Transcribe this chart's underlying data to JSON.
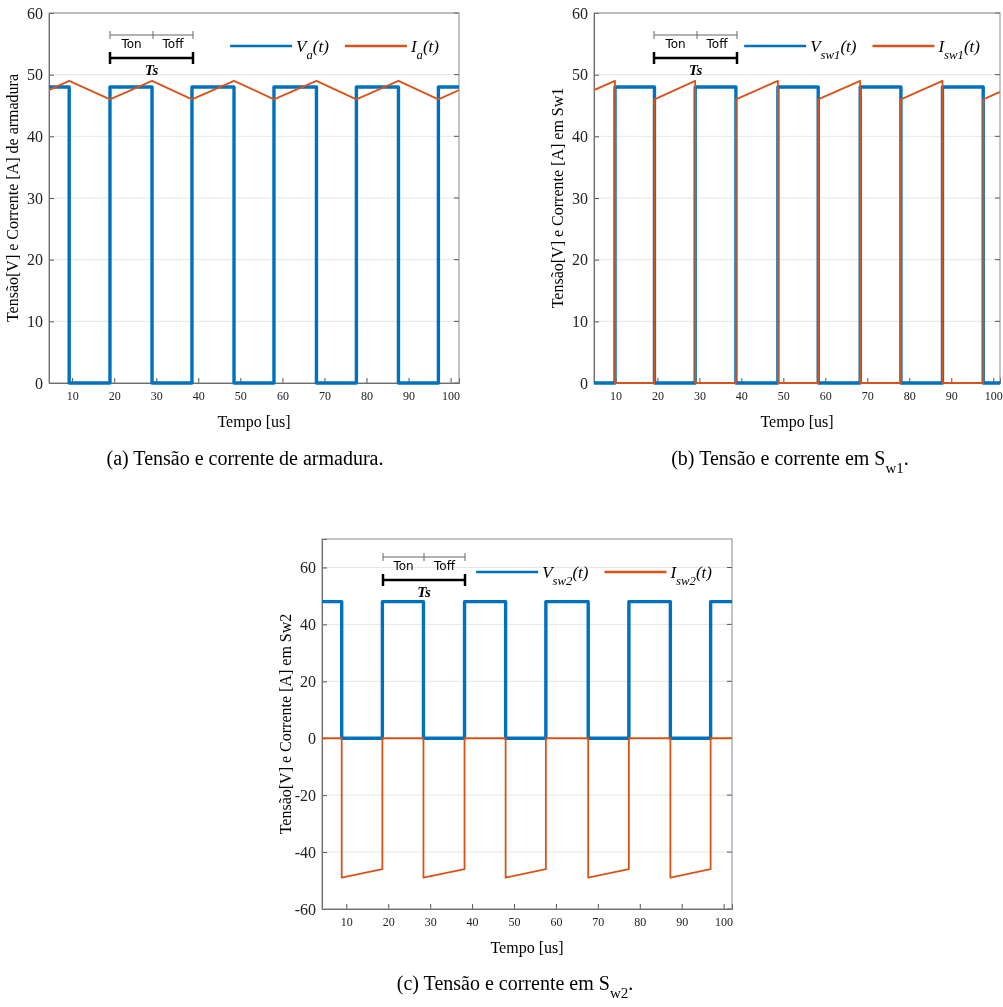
{
  "chart_data": [
    {
      "type": "line",
      "title": "(a) Tensão e corrente de armadura.",
      "xlabel": "Tempo [us]",
      "ylabel": "Tensão[V] e Corrente [A] de armadura",
      "xlim": [
        4.5,
        102
      ],
      "ylim": [
        0,
        60
      ],
      "xticks": [
        10,
        20,
        30,
        40,
        50,
        60,
        70,
        80,
        90,
        100
      ],
      "yticks": [
        0,
        10,
        20,
        30,
        40,
        50,
        60
      ],
      "grid": "y",
      "legend": "top right",
      "line_style": "solid",
      "marker": "none",
      "series": [
        {
          "name": "V$_{a}$(t)",
          "color": "#0072bd",
          "x": [
            4.5,
            9.3,
            9.3,
            19.0,
            19.0,
            29.0,
            29.0,
            38.5,
            38.5,
            48.5,
            48.5,
            58.0,
            58.0,
            68.1,
            68.1,
            77.6,
            77.6,
            87.6,
            87.6,
            97.1,
            97.1,
            102
          ],
          "values": [
            48,
            48,
            0,
            0,
            48,
            48,
            0,
            0,
            48,
            48,
            0,
            0,
            48,
            48,
            0,
            0,
            48,
            48,
            0,
            0,
            48,
            48
          ]
        },
        {
          "name": "I$_{a}$(t)",
          "color": "#d95319",
          "x": [
            4.5,
            9.3,
            19.0,
            29.0,
            38.5,
            48.5,
            58.0,
            68.1,
            77.6,
            87.6,
            97.1,
            102
          ],
          "values": [
            47.5,
            49,
            46,
            49,
            46,
            49,
            46,
            49,
            46,
            49,
            46,
            47.5
          ]
        }
      ],
      "annotations": [
        "Ton",
        "Toff",
        "Ts"
      ]
    },
    {
      "type": "line",
      "title": "(b) Tensão e corrente em S$_{w1}$.",
      "xlabel": "Tempo [us]",
      "ylabel": "Tensão[V] e Corrente [A] em Sw1",
      "xlim": [
        4.9,
        101.6
      ],
      "ylim": [
        0,
        60
      ],
      "xticks": [
        10,
        20,
        30,
        40,
        50,
        60,
        70,
        80,
        90,
        100
      ],
      "yticks": [
        0,
        10,
        20,
        30,
        40,
        50,
        60
      ],
      "grid": "y",
      "legend": "top right",
      "line_style": "solid",
      "marker": "none",
      "series": [
        {
          "name": "V$_{sw1}$(t)",
          "color": "#0072bd",
          "x": [
            4.9,
            9.9,
            9.9,
            19.3,
            19.3,
            29.0,
            29.0,
            38.7,
            38.7,
            48.7,
            48.7,
            58.3,
            58.3,
            68.3,
            68.3,
            78.0,
            78.0,
            87.9,
            87.9,
            97.6,
            97.6,
            101.6
          ],
          "values": [
            0,
            0,
            48,
            48,
            0,
            0,
            48,
            48,
            0,
            0,
            48,
            48,
            0,
            0,
            48,
            48,
            0,
            0,
            48,
            48,
            0,
            0
          ]
        },
        {
          "name": "I$_{sw1}$(t)",
          "color": "#d95319",
          "x": [
            4.9,
            9.9,
            9.9,
            19.3,
            19.3,
            29.0,
            29.0,
            38.7,
            38.7,
            48.7,
            48.7,
            58.3,
            58.3,
            68.3,
            68.3,
            78.0,
            78.0,
            87.9,
            87.9,
            97.6,
            97.6,
            101.6
          ],
          "values": [
            47.5,
            49,
            0,
            0,
            46,
            49,
            0,
            0,
            46,
            49,
            0,
            0,
            46,
            49,
            0,
            0,
            46,
            49,
            0,
            0,
            46,
            47.2
          ]
        }
      ],
      "annotations": [
        "Ton",
        "Toff",
        "Ts"
      ]
    },
    {
      "type": "line",
      "title": "(c) Tensão e corrente em S$_{w2}$.",
      "xlabel": "Tempo [us]",
      "ylabel": "Tensão[V] e Corrente [A] em Sw2",
      "xlim": [
        4.2,
        102
      ],
      "ylim": [
        -60,
        70
      ],
      "xticks": [
        10,
        20,
        30,
        40,
        50,
        60,
        70,
        80,
        90,
        100
      ],
      "yticks": [
        -60,
        -40,
        -20,
        0,
        20,
        40,
        60
      ],
      "grid": "y",
      "legend": "top right",
      "line_style": "solid",
      "marker": "none",
      "series": [
        {
          "name": "V$_{sw2}$(t)",
          "color": "#0072bd",
          "x": [
            4.2,
            8.9,
            8.9,
            18.6,
            18.6,
            28.4,
            28.4,
            38.2,
            38.2,
            48.0,
            48.0,
            57.6,
            57.6,
            67.7,
            67.7,
            77.4,
            77.4,
            87.3,
            87.3,
            96.9,
            96.9,
            102
          ],
          "values": [
            48,
            48,
            0,
            0,
            48,
            48,
            0,
            0,
            48,
            48,
            0,
            0,
            48,
            48,
            0,
            0,
            48,
            48,
            0,
            0,
            48,
            48
          ]
        },
        {
          "name": "I$_{sw2}$(t)",
          "color": "#d95319",
          "x": [
            4.2,
            8.9,
            8.9,
            18.6,
            18.6,
            28.4,
            28.4,
            38.2,
            38.2,
            48.0,
            48.0,
            57.6,
            57.6,
            67.7,
            67.7,
            77.4,
            77.4,
            87.3,
            87.3,
            96.9,
            96.9,
            102
          ],
          "values": [
            0,
            0,
            -49,
            -46,
            0,
            0,
            -49,
            -46,
            0,
            0,
            -49,
            -46,
            0,
            0,
            -49,
            -46,
            0,
            0,
            -49,
            -46,
            0,
            0
          ]
        }
      ],
      "annotations": [
        "Ton",
        "Toff",
        "Ts"
      ]
    }
  ]
}
